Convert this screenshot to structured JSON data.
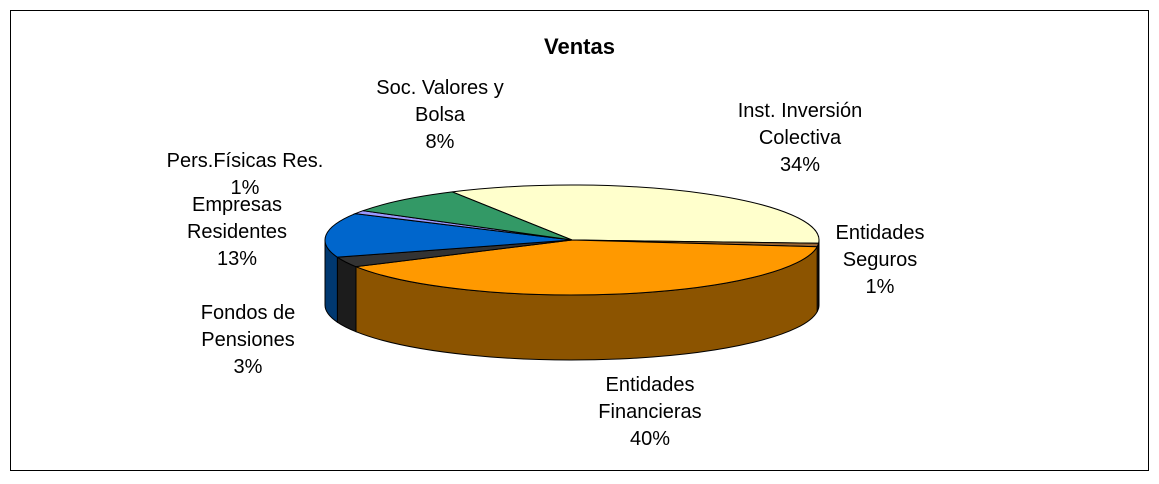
{
  "chart_data": {
    "type": "pie",
    "title": "Ventas",
    "categories": [
      "Inst. Inversión Colectiva",
      "Entidades Seguros",
      "Entidades Financieras",
      "Fondos de Pensiones",
      "Empresas Residentes",
      "Pers.Físicas Res.",
      "Soc. Valores y Bolsa"
    ],
    "values": [
      34,
      1,
      40,
      3,
      13,
      1,
      8
    ],
    "value_labels": [
      "34%",
      "1%",
      "40%",
      "3%",
      "13%",
      "1%",
      "8%"
    ],
    "colors": [
      "#ffffcc",
      "#996633",
      "#ff9900",
      "#333333",
      "#0066cc",
      "#9999ff",
      "#339966"
    ]
  }
}
